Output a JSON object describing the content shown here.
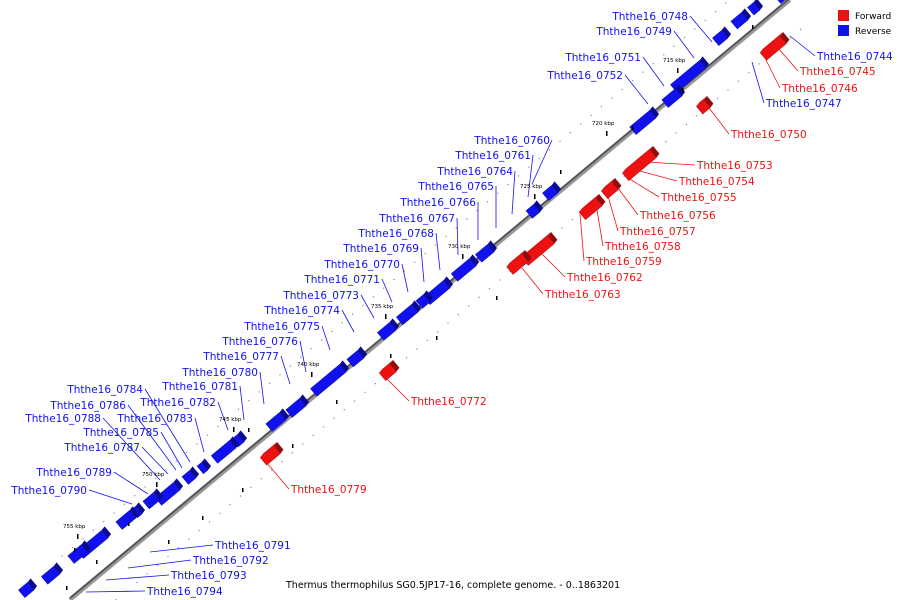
{
  "caption": "Thermus thermophilus SG0.5JP17-16, complete genome. - 0..1863201",
  "legend": [
    {
      "label": "Forward",
      "color": "#ee1111"
    },
    {
      "label": "Reverse",
      "color": "#1111ee"
    }
  ],
  "ticks": [
    "715 kbp",
    "720 kbp",
    "725 kbp",
    "730 kbp",
    "735 kbp",
    "740 kbp",
    "745 kbp",
    "750 kbp",
    "755 kbp"
  ],
  "reverse_genes": [
    "Ththe16_0748",
    "Ththe16_0749",
    "Ththe16_0751",
    "Ththe16_0752",
    "Ththe16_0760",
    "Ththe16_0761",
    "Ththe16_0764",
    "Ththe16_0765",
    "Ththe16_0766",
    "Ththe16_0767",
    "Ththe16_0768",
    "Ththe16_0769",
    "Ththe16_0770",
    "Ththe16_0771",
    "Ththe16_0773",
    "Ththe16_0774",
    "Ththe16_0775",
    "Ththe16_0776",
    "Ththe16_0777",
    "Ththe16_0780",
    "Ththe16_0781",
    "Ththe16_0782",
    "Ththe16_0784",
    "Ththe16_0786",
    "Ththe16_0788",
    "Ththe16_0783",
    "Ththe16_0785",
    "Ththe16_0787",
    "Ththe16_0789",
    "Ththe16_0790",
    "Ththe16_0744",
    "Ththe16_0747",
    "Ththe16_0791",
    "Ththe16_0792",
    "Ththe16_0793",
    "Ththe16_0794"
  ],
  "forward_genes": [
    "Ththe16_0745",
    "Ththe16_0746",
    "Ththe16_0750",
    "Ththe16_0753",
    "Ththe16_0754",
    "Ththe16_0755",
    "Ththe16_0756",
    "Ththe16_0757",
    "Ththe16_0758",
    "Ththe16_0759",
    "Ththe16_0762",
    "Ththe16_0763",
    "Ththe16_0772",
    "Ththe16_0779"
  ]
}
